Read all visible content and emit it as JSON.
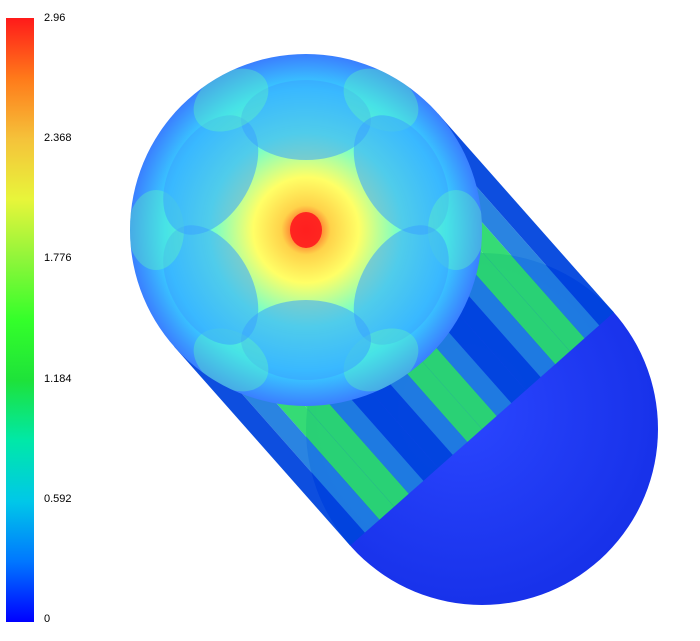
{
  "chart_data": {
    "type": "heatmap",
    "title": "",
    "colorbar": {
      "min": 0,
      "max": 2.96,
      "tick_labels": [
        "2.96",
        "2.368",
        "1.776",
        "1.184",
        "0.592",
        "0"
      ],
      "tick_values": [
        2.96,
        2.368,
        1.776,
        1.184,
        0.592,
        0
      ],
      "colormap": [
        "#0000ff",
        "#0077ff",
        "#00c8e8",
        "#00e8a8",
        "#1ee23a",
        "#34ff2a",
        "#8ef53a",
        "#e8f53a",
        "#f5c23a",
        "#ff7a1a",
        "#ff1a1a"
      ]
    },
    "field": {
      "center_value": 2.96,
      "face_pattern_lobes": 6,
      "face_peak_near_center": true
    },
    "colors": {
      "face_background": "#39d4ff",
      "face_mid": "#ffff66",
      "face_peak": "#ff2020",
      "side_dark": "#0044dd",
      "side_band": "#2ad96e",
      "end_cap": "#1f3dff"
    }
  }
}
